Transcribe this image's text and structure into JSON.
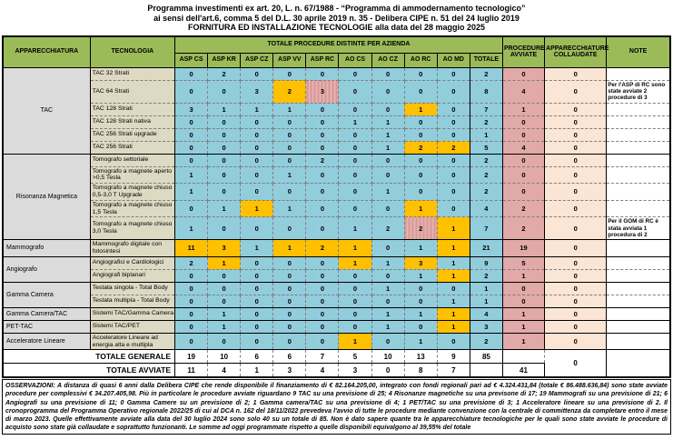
{
  "title": {
    "line1": "Programma investimenti ex art. 20, L. n. 67/1988 - “Programma di ammodernamento tecnologico”",
    "line2": "ai sensi dell'art.6, comma 5 del D.L. 30 aprile 2019 n. 35 - Delibera CIPE n. 51 del 24 luglio 2019",
    "line3": "FORNITURA ED INSTALLAZIONE TECNOLOGIE alla data del 28 maggio 2025"
  },
  "colors": {
    "header_green": "#9BBB59",
    "cell_blue": "#92CDDC",
    "cell_orange_avviata": "#FFC000",
    "cell_pink_parziale": "#D99694",
    "col_procedure_avviate": "#E1A9A8",
    "col_collaudate": "#FBE5D5",
    "tecnologia_bg": "#DDD9C3",
    "apparecchiatura_bg": "#DBDBDB"
  },
  "table": {
    "headers": {
      "apparecchiatura": "APPARECCHIATURA",
      "tecnologia": "TECNOLOGIA",
      "group": "TOTALE PROCEDURE  DISTINTE PER AZIENDA",
      "aziende": [
        "ASP CS",
        "ASP KR",
        "ASP CZ",
        "ASP VV",
        "ASP RC",
        "AO CS",
        "AO CZ",
        "AO RC",
        "AO MD",
        "TOTALE"
      ],
      "avviate": "PROCEDURE AVVIATE",
      "collaudate": "APPARECCHIATURE COLLAUDATE",
      "note": "NOTE"
    },
    "groups": [
      {
        "name": "TAC",
        "rows": [
          {
            "tech": "TAC 32 Strati",
            "values": [
              0,
              2,
              0,
              0,
              0,
              0,
              0,
              0,
              0
            ],
            "colors": [
              "b",
              "b",
              "b",
              "b",
              "b",
              "b",
              "b",
              "b",
              "b"
            ],
            "totale": 2,
            "avviate": 0,
            "collaudate": 0,
            "note": ""
          },
          {
            "tech": "TAC 64 Strati",
            "values": [
              0,
              0,
              3,
              2,
              3,
              0,
              0,
              0,
              0
            ],
            "colors": [
              "b",
              "b",
              "b",
              "o",
              "p",
              "b",
              "b",
              "b",
              "b"
            ],
            "totale": 8,
            "avviate": 4,
            "collaudate": 0,
            "note": "Per l'ASP di RC sono state avviate 2 procedure di 3"
          },
          {
            "tech": "TAC 128 Strati",
            "values": [
              3,
              1,
              1,
              1,
              0,
              0,
              0,
              1,
              0
            ],
            "colors": [
              "b",
              "b",
              "b",
              "b",
              "b",
              "b",
              "b",
              "o",
              "b"
            ],
            "totale": 7,
            "avviate": 1,
            "collaudate": 0,
            "note": ""
          },
          {
            "tech": "TAC 128 Strati nativa",
            "values": [
              0,
              0,
              0,
              0,
              0,
              1,
              1,
              0,
              0
            ],
            "colors": [
              "b",
              "b",
              "b",
              "b",
              "b",
              "b",
              "b",
              "b",
              "b"
            ],
            "totale": 2,
            "avviate": 0,
            "collaudate": 0,
            "note": ""
          },
          {
            "tech": "TAC 256 Strati upgrade",
            "values": [
              0,
              0,
              0,
              0,
              0,
              0,
              1,
              0,
              0
            ],
            "colors": [
              "b",
              "b",
              "b",
              "b",
              "b",
              "b",
              "b",
              "b",
              "b"
            ],
            "totale": 1,
            "avviate": 0,
            "collaudate": 0,
            "note": ""
          },
          {
            "tech": "TAC 256 Strati",
            "values": [
              0,
              0,
              0,
              0,
              0,
              0,
              1,
              2,
              2
            ],
            "colors": [
              "b",
              "b",
              "b",
              "b",
              "b",
              "b",
              "b",
              "o",
              "o"
            ],
            "totale": 5,
            "avviate": 4,
            "collaudate": 0,
            "note": ""
          }
        ]
      },
      {
        "name": "Risonanza Magnetica",
        "rows": [
          {
            "tech": "Tomografo settoriale",
            "values": [
              0,
              0,
              0,
              0,
              2,
              0,
              0,
              0,
              0
            ],
            "colors": [
              "b",
              "b",
              "b",
              "b",
              "b",
              "b",
              "b",
              "b",
              "b"
            ],
            "totale": 2,
            "avviate": 0,
            "collaudate": 0,
            "note": ""
          },
          {
            "tech": "Tomografo a magnete aperto >0,5 Tesla",
            "values": [
              1,
              0,
              0,
              1,
              0,
              0,
              0,
              0,
              0
            ],
            "colors": [
              "b",
              "b",
              "b",
              "b",
              "b",
              "b",
              "b",
              "b",
              "b"
            ],
            "totale": 2,
            "avviate": 0,
            "collaudate": 0,
            "note": ""
          },
          {
            "tech": "Tomografo a magnete chiuso 0,5-3,0 T Upgrade",
            "values": [
              1,
              0,
              0,
              0,
              0,
              0,
              1,
              0,
              0
            ],
            "colors": [
              "b",
              "b",
              "b",
              "b",
              "b",
              "b",
              "b",
              "b",
              "b"
            ],
            "totale": 2,
            "avviate": 0,
            "collaudate": 0,
            "note": ""
          },
          {
            "tech": "Tomografo a magnete chiuso 1,5 Tesla",
            "values": [
              0,
              1,
              1,
              1,
              0,
              0,
              0,
              1,
              0
            ],
            "colors": [
              "b",
              "b",
              "o",
              "b",
              "b",
              "b",
              "b",
              "o",
              "b"
            ],
            "totale": 4,
            "avviate": 2,
            "collaudate": 0,
            "note": ""
          },
          {
            "tech": "Tomografo a magnete chiuso 3,0 Tesla",
            "values": [
              1,
              0,
              0,
              0,
              0,
              1,
              2,
              2,
              1
            ],
            "colors": [
              "b",
              "b",
              "b",
              "b",
              "b",
              "b",
              "b",
              "p",
              "o"
            ],
            "totale": 7,
            "avviate": 2,
            "collaudate": 0,
            "note": "Per il GOM di RC è stata avviata 1 procedura di 2"
          }
        ]
      },
      {
        "name": "Mammografo",
        "rows": [
          {
            "tech": "Mammografo digitale con fotosintesi",
            "values": [
              11,
              3,
              1,
              1,
              2,
              1,
              0,
              1,
              1
            ],
            "colors": [
              "o",
              "o",
              "b",
              "o",
              "o",
              "o",
              "b",
              "b",
              "o"
            ],
            "totale": 21,
            "avviate": 19,
            "collaudate": 0,
            "note": ""
          }
        ]
      },
      {
        "name": "Angiografo",
        "rows": [
          {
            "tech": "Angiografici e Cardiologici",
            "values": [
              2,
              1,
              0,
              0,
              0,
              1,
              1,
              3,
              1
            ],
            "colors": [
              "b",
              "o",
              "b",
              "b",
              "b",
              "o",
              "b",
              "o",
              "b"
            ],
            "totale": 9,
            "avviate": 5,
            "collaudate": 0,
            "note": ""
          },
          {
            "tech": "Angiografi biplanari",
            "values": [
              0,
              0,
              0,
              0,
              0,
              0,
              0,
              1,
              1
            ],
            "colors": [
              "b",
              "b",
              "b",
              "b",
              "b",
              "b",
              "b",
              "b",
              "o"
            ],
            "totale": 2,
            "avviate": 1,
            "collaudate": 0,
            "note": ""
          }
        ]
      },
      {
        "name": "Gamma Camera",
        "rows": [
          {
            "tech": "Testata singola - Total Body",
            "values": [
              0,
              0,
              0,
              0,
              0,
              0,
              1,
              0,
              0
            ],
            "colors": [
              "b",
              "b",
              "b",
              "b",
              "b",
              "b",
              "b",
              "b",
              "b"
            ],
            "totale": 1,
            "avviate": 0,
            "collaudate": 0,
            "note": ""
          },
          {
            "tech": "Testata multipla - Total Body",
            "values": [
              0,
              0,
              0,
              0,
              0,
              0,
              0,
              0,
              1
            ],
            "colors": [
              "b",
              "b",
              "b",
              "b",
              "b",
              "b",
              "b",
              "b",
              "b"
            ],
            "totale": 1,
            "avviate": 0,
            "collaudate": 0,
            "note": ""
          }
        ]
      },
      {
        "name": "Gamma Camera/TAC",
        "rows": [
          {
            "tech": "Sistemi TAC/Gamma Camera",
            "values": [
              0,
              1,
              0,
              0,
              0,
              0,
              1,
              1,
              1
            ],
            "colors": [
              "b",
              "b",
              "b",
              "b",
              "b",
              "b",
              "b",
              "b",
              "o"
            ],
            "totale": 4,
            "avviate": 1,
            "collaudate": 0,
            "note": ""
          }
        ]
      },
      {
        "name": "PET-TAC",
        "rows": [
          {
            "tech": "Sistemi TAC/PET",
            "values": [
              0,
              1,
              0,
              0,
              0,
              0,
              1,
              0,
              1
            ],
            "colors": [
              "b",
              "b",
              "b",
              "b",
              "b",
              "b",
              "b",
              "b",
              "o"
            ],
            "totale": 3,
            "avviate": 1,
            "collaudate": 0,
            "note": ""
          }
        ]
      },
      {
        "name": "Acceleratore Lineare",
        "rows": [
          {
            "tech": "Acceleratore Lineare ad energia alta e multipla",
            "values": [
              0,
              0,
              0,
              0,
              0,
              1,
              0,
              1,
              0
            ],
            "colors": [
              "b",
              "b",
              "b",
              "b",
              "b",
              "o",
              "b",
              "b",
              "b"
            ],
            "totale": 2,
            "avviate": 1,
            "collaudate": 0,
            "note": ""
          }
        ]
      }
    ],
    "totals": {
      "generale_label": "TOTALE GENERALE",
      "generale_values": [
        19,
        10,
        6,
        6,
        7,
        5,
        10,
        13,
        9
      ],
      "generale_totale": 85,
      "avviate_label": "TOTALE AVVIATE",
      "avviate_values": [
        11,
        4,
        1,
        3,
        4,
        3,
        0,
        8,
        7
      ],
      "avviate_totale": 41,
      "collaudate_totale": 0
    }
  },
  "observations": "OSSERVAZIONI: A distanza di quasi 6 anni dalla Delibera CIPE che rende disponibile il finanziamento di € 82.164.205,00, integrato con fondi regionali pari ad € 4.324.431,84 (totale € 86.488.636,84) sono state avviate procedure per complessivi € 34.207.405,98. Più in particolare le procedure avviate riguardano 9 TAC su una previsione di 25; 4 Risonanze magnetiche su una previsone di 17; 19 Mammografi su una previsione di 21; 6 Angiografi su una previsione di 11; 0 Gamma Camere su un previsione di 2; 1 Gamma camera/TAC su una previsione di 4; 1 PET/TAC su una previsione di 3; 1 Acceleratore lineare su una previsione di 2. Il cronoprogramma del Programma Operativo regionale 2022/25 di cui al DCA n. 162 del 18/11/2022 prevedeva l'avvio di tutte le procedure mediante convenzione con la centrale di committenza da completare entro il mese di marzo 2023. Quelle effettivamente avviate alla data del 30 luglio 2024 sono solo 40 su un totale di 85. Non è dato sapere quante tra le apparecchiature tecnologiche per le quali sono state avviate le procedure di acquisto sono state già collaudate e soprattutto funzionanti. Le somme ad oggi programmate rispetto a quelle disponibili equivalgono al 39,55% del totale"
}
